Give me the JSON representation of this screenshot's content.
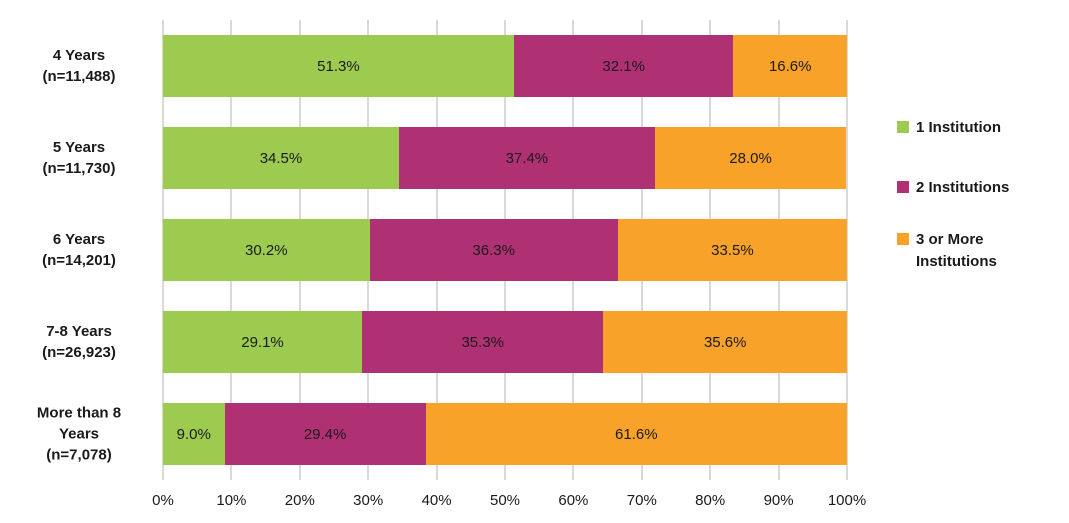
{
  "chart_data": {
    "type": "bar",
    "orientation": "horizontal-stacked",
    "title": "",
    "xlabel": "",
    "ylabel": "",
    "xlim": [
      0,
      100
    ],
    "grid": "vertical",
    "gridline_color": "#D9D9D9",
    "background_color": "#FFFFFF",
    "text_color": "#1a1a1a",
    "legend_position": "right",
    "categories": [
      {
        "name": "4 Years (n=11,488)",
        "lines": [
          "4 Years",
          "(n=11,488)"
        ]
      },
      {
        "name": "5 Years (n=11,730)",
        "lines": [
          "5 Years",
          "(n=11,730)"
        ]
      },
      {
        "name": "6 Years (n=14,201)",
        "lines": [
          "6 Years",
          "(n=14,201)"
        ]
      },
      {
        "name": "7-8 Years (n=26,923)",
        "lines": [
          "7-8 Years",
          "(n=26,923)"
        ]
      },
      {
        "name": "More than 8 Years (n=7,078)",
        "lines": [
          "More than 8",
          "Years",
          "(n=7,078)"
        ]
      }
    ],
    "series": [
      {
        "name": "1 Institution",
        "color": "#9DCB50",
        "values": [
          51.3,
          34.5,
          30.2,
          29.1,
          9.0
        ],
        "labels": [
          "51.3%",
          "34.5%",
          "30.2%",
          "29.1%",
          "9.0%"
        ],
        "legend_lines": [
          "1 Institution"
        ]
      },
      {
        "name": "2 Institutions",
        "color": "#B03074",
        "values": [
          32.1,
          37.4,
          36.3,
          35.3,
          29.4
        ],
        "labels": [
          "32.1%",
          "37.4%",
          "36.3%",
          "35.3%",
          "29.4%"
        ],
        "legend_lines": [
          "2 Institutions"
        ]
      },
      {
        "name": "3 or More Institutions",
        "color": "#F8A229",
        "values": [
          16.6,
          28.0,
          33.5,
          35.6,
          61.6
        ],
        "labels": [
          "16.6%",
          "28.0%",
          "33.5%",
          "35.6%",
          "61.6%"
        ],
        "legend_lines": [
          "3 or More",
          "Institutions"
        ]
      }
    ],
    "x_ticks": [
      "0%",
      "10%",
      "20%",
      "30%",
      "40%",
      "50%",
      "60%",
      "70%",
      "80%",
      "90%",
      "100%"
    ]
  }
}
